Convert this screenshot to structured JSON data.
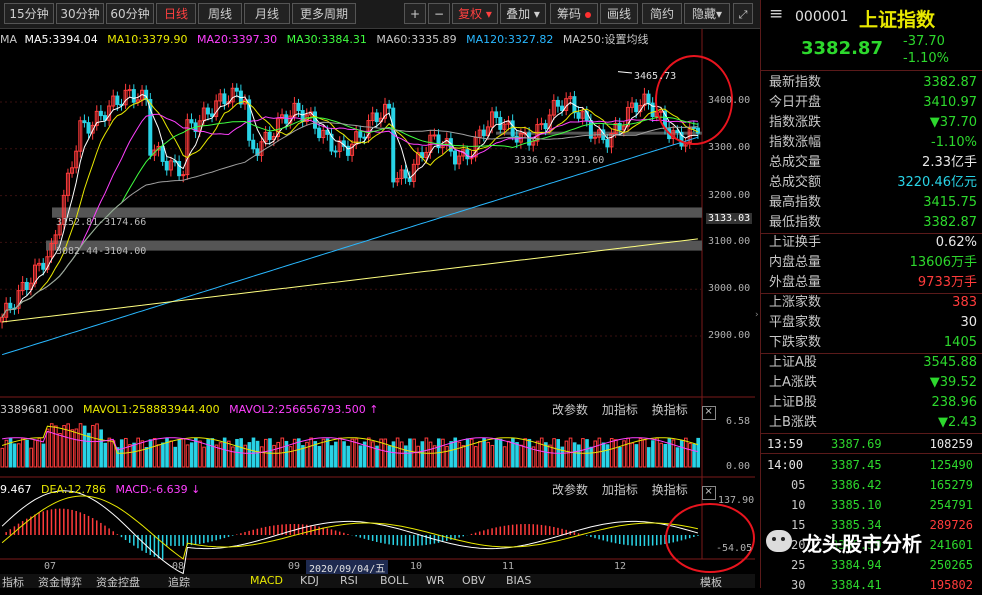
{
  "toolbar": {
    "periods": [
      "15分钟",
      "30分钟",
      "60分钟",
      "日线",
      "周线",
      "月线",
      "更多周期"
    ],
    "active_period": "日线",
    "zoom_in": "+",
    "zoom_out": "−",
    "fuquan": "复权",
    "overlay": "叠加",
    "chouma": "筹码",
    "draw": "画线",
    "simple": "简约",
    "hide": "隐藏"
  },
  "price_legend": {
    "ma": "MA",
    "ma5": "MA5:3394.04",
    "ma10": "MA10:3379.90",
    "ma20": "MA20:3397.30",
    "ma30": "MA30:3384.31",
    "ma60": "MA60:3335.89",
    "ma120": "MA120:3327.82",
    "ma250": "MA250:设置均线"
  },
  "price_axis": {
    "ticks": [
      "3400.00",
      "3300.00",
      "3200.00",
      "3100.00",
      "3000.00",
      "2900.00"
    ],
    "current": "3133.03"
  },
  "annotations": {
    "high": "3465.73",
    "gap1": "3152.81-3174.66",
    "gap2": "3082.44-3104.00",
    "gap3": "3336.62-3291.60"
  },
  "volume_legend": {
    "vol": "3389681.000",
    "mavol1": "MAVOL1:258883944.400",
    "mavol2": "MAVOL2:256656793.500"
  },
  "volume_axis": {
    "top": "6.58",
    "bottom": "0.00"
  },
  "macd_legend": {
    "dif": "9.467",
    "dea": "DEA:12.786",
    "macd": "MACD:-6.639"
  },
  "macd_axis": {
    "top": "137.90",
    "bottom": "-54.05"
  },
  "panel_tools": {
    "params": "改参数",
    "add": "加指标",
    "change": "换指标"
  },
  "x_axis": {
    "labels": [
      "07",
      "08",
      "09",
      "10",
      "11",
      "12"
    ],
    "cursor_date": "2020/09/04/五"
  },
  "bottom_tabs": [
    "指标",
    "资金博弈",
    "资金控盘",
    "追踪",
    "MACD",
    "KDJ",
    "RSI",
    "BOLL",
    "WR",
    "OBV",
    "BIAS",
    "模板"
  ],
  "quote": {
    "code": "000001",
    "name": "上证指数",
    "price": "3382.87",
    "change": "-37.70",
    "change_pct": "-1.10%",
    "rows": [
      {
        "k": "最新指数",
        "v": "3382.87",
        "c": "green"
      },
      {
        "k": "今日开盘",
        "v": "3410.97",
        "c": "green"
      },
      {
        "k": "指数涨跌",
        "v": "▼37.70",
        "c": "green"
      },
      {
        "k": "指数涨幅",
        "v": "-1.10%",
        "c": "green"
      },
      {
        "k": "总成交量",
        "v": "2.33亿手",
        "c": "white"
      },
      {
        "k": "总成交额",
        "v": "3220.46亿元",
        "c": "cyan"
      },
      {
        "k": "最高指数",
        "v": "3415.75",
        "c": "green"
      },
      {
        "k": "最低指数",
        "v": "3382.87",
        "c": "green"
      },
      {
        "k": "上证换手",
        "v": "0.62%",
        "c": "white"
      },
      {
        "k": "内盘总量",
        "v": "13606万手",
        "c": "green"
      },
      {
        "k": "外盘总量",
        "v": "9733万手",
        "c": "red"
      },
      {
        "k": "上涨家数",
        "v": "383",
        "c": "red"
      },
      {
        "k": "平盘家数",
        "v": "30",
        "c": "white"
      },
      {
        "k": "下跌家数",
        "v": "1405",
        "c": "green"
      },
      {
        "k": "上证A股",
        "v": "3545.88",
        "c": "green"
      },
      {
        "k": "上A涨跌",
        "v": "▼39.52",
        "c": "green"
      },
      {
        "k": "上证B股",
        "v": "238.96",
        "c": "green"
      },
      {
        "k": "上B涨跌",
        "v": "▼2.43",
        "c": "green"
      }
    ],
    "ticks": [
      {
        "t": "13:59",
        "p": "3387.69",
        "v": "108259",
        "c": "white"
      },
      {
        "t": "14:00",
        "p": "3387.45",
        "v": "125490",
        "c": "green"
      },
      {
        "t": "05",
        "p": "3386.42",
        "v": "165279",
        "c": "green"
      },
      {
        "t": "10",
        "p": "3385.10",
        "v": "254791",
        "c": "green"
      },
      {
        "t": "15",
        "p": "3385.34",
        "v": "289726",
        "c": "red"
      },
      {
        "t": "20",
        "p": "3385.59",
        "v": "241601",
        "c": "green"
      },
      {
        "t": "25",
        "p": "3384.94",
        "v": "250265",
        "c": "green"
      },
      {
        "t": "30",
        "p": "3384.41",
        "v": "195802",
        "c": "red"
      }
    ]
  },
  "watermark": "龙头股市分析",
  "colors": {
    "up": "#ff3b3b",
    "down": "#29d3e6",
    "ma5": "#ffffff",
    "ma10": "#e8e800",
    "ma20": "#ff40ff",
    "ma30": "#40ff40",
    "ma60": "#a0a0a0",
    "ma120": "#29b8ff",
    "ma250": "#ffff80"
  }
}
